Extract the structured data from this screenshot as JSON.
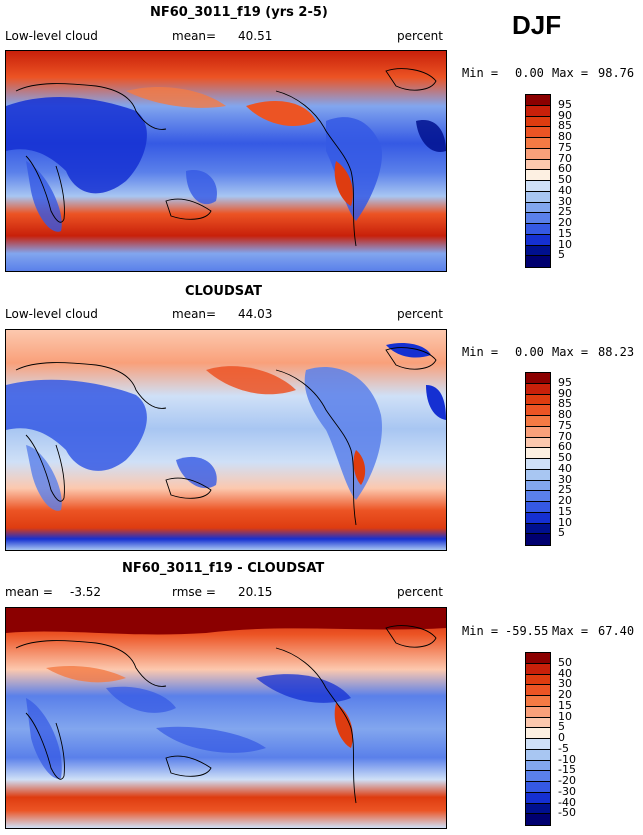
{
  "season": "DJF",
  "panels": [
    {
      "title": "NF60_3011_f19 (yrs 2-5)",
      "left_label": "Low-level cloud",
      "stat_label": "mean=",
      "stat_value": "40.51",
      "units": "percent",
      "min_label": "Min =",
      "min_value": "0.00",
      "max_label": "Max =",
      "max_value": "98.76",
      "levels": [
        "95",
        "90",
        "85",
        "80",
        "75",
        "70",
        "60",
        "50",
        "40",
        "30",
        "25",
        "20",
        "15",
        "10",
        "5"
      ]
    },
    {
      "title": "CLOUDSAT",
      "left_label": "Low-level cloud",
      "stat_label": "mean=",
      "stat_value": "44.03",
      "units": "percent",
      "min_label": "Min =",
      "min_value": "0.00",
      "max_label": "Max =",
      "max_value": "88.23",
      "levels": [
        "95",
        "90",
        "85",
        "80",
        "75",
        "70",
        "60",
        "50",
        "40",
        "30",
        "25",
        "20",
        "15",
        "10",
        "5"
      ]
    },
    {
      "title": "NF60_3011_f19 - CLOUDSAT",
      "left_label": "mean =",
      "left_value": "-3.52",
      "stat_label": "rmse =",
      "stat_value": "20.15",
      "units": "percent",
      "min_label": "Min =",
      "min_value": "-59.55",
      "max_label": "Max =",
      "max_value": "67.40",
      "levels": [
        "50",
        "40",
        "30",
        "20",
        "15",
        "10",
        "5",
        "0",
        "-5",
        "-10",
        "-15",
        "-20",
        "-30",
        "-40",
        "-50"
      ]
    }
  ],
  "colors": {
    "scale": [
      "#8b0000",
      "#c8200a",
      "#de3c10",
      "#ec5424",
      "#f47a44",
      "#f9a07a",
      "#fcc8ae",
      "#fdf0e2",
      "#cfe0f7",
      "#a8c6f2",
      "#82a6ee",
      "#5a80ea",
      "#3559e4",
      "#1530d2",
      "#00108e",
      "#000070"
    ],
    "land_outline": "#000000"
  }
}
